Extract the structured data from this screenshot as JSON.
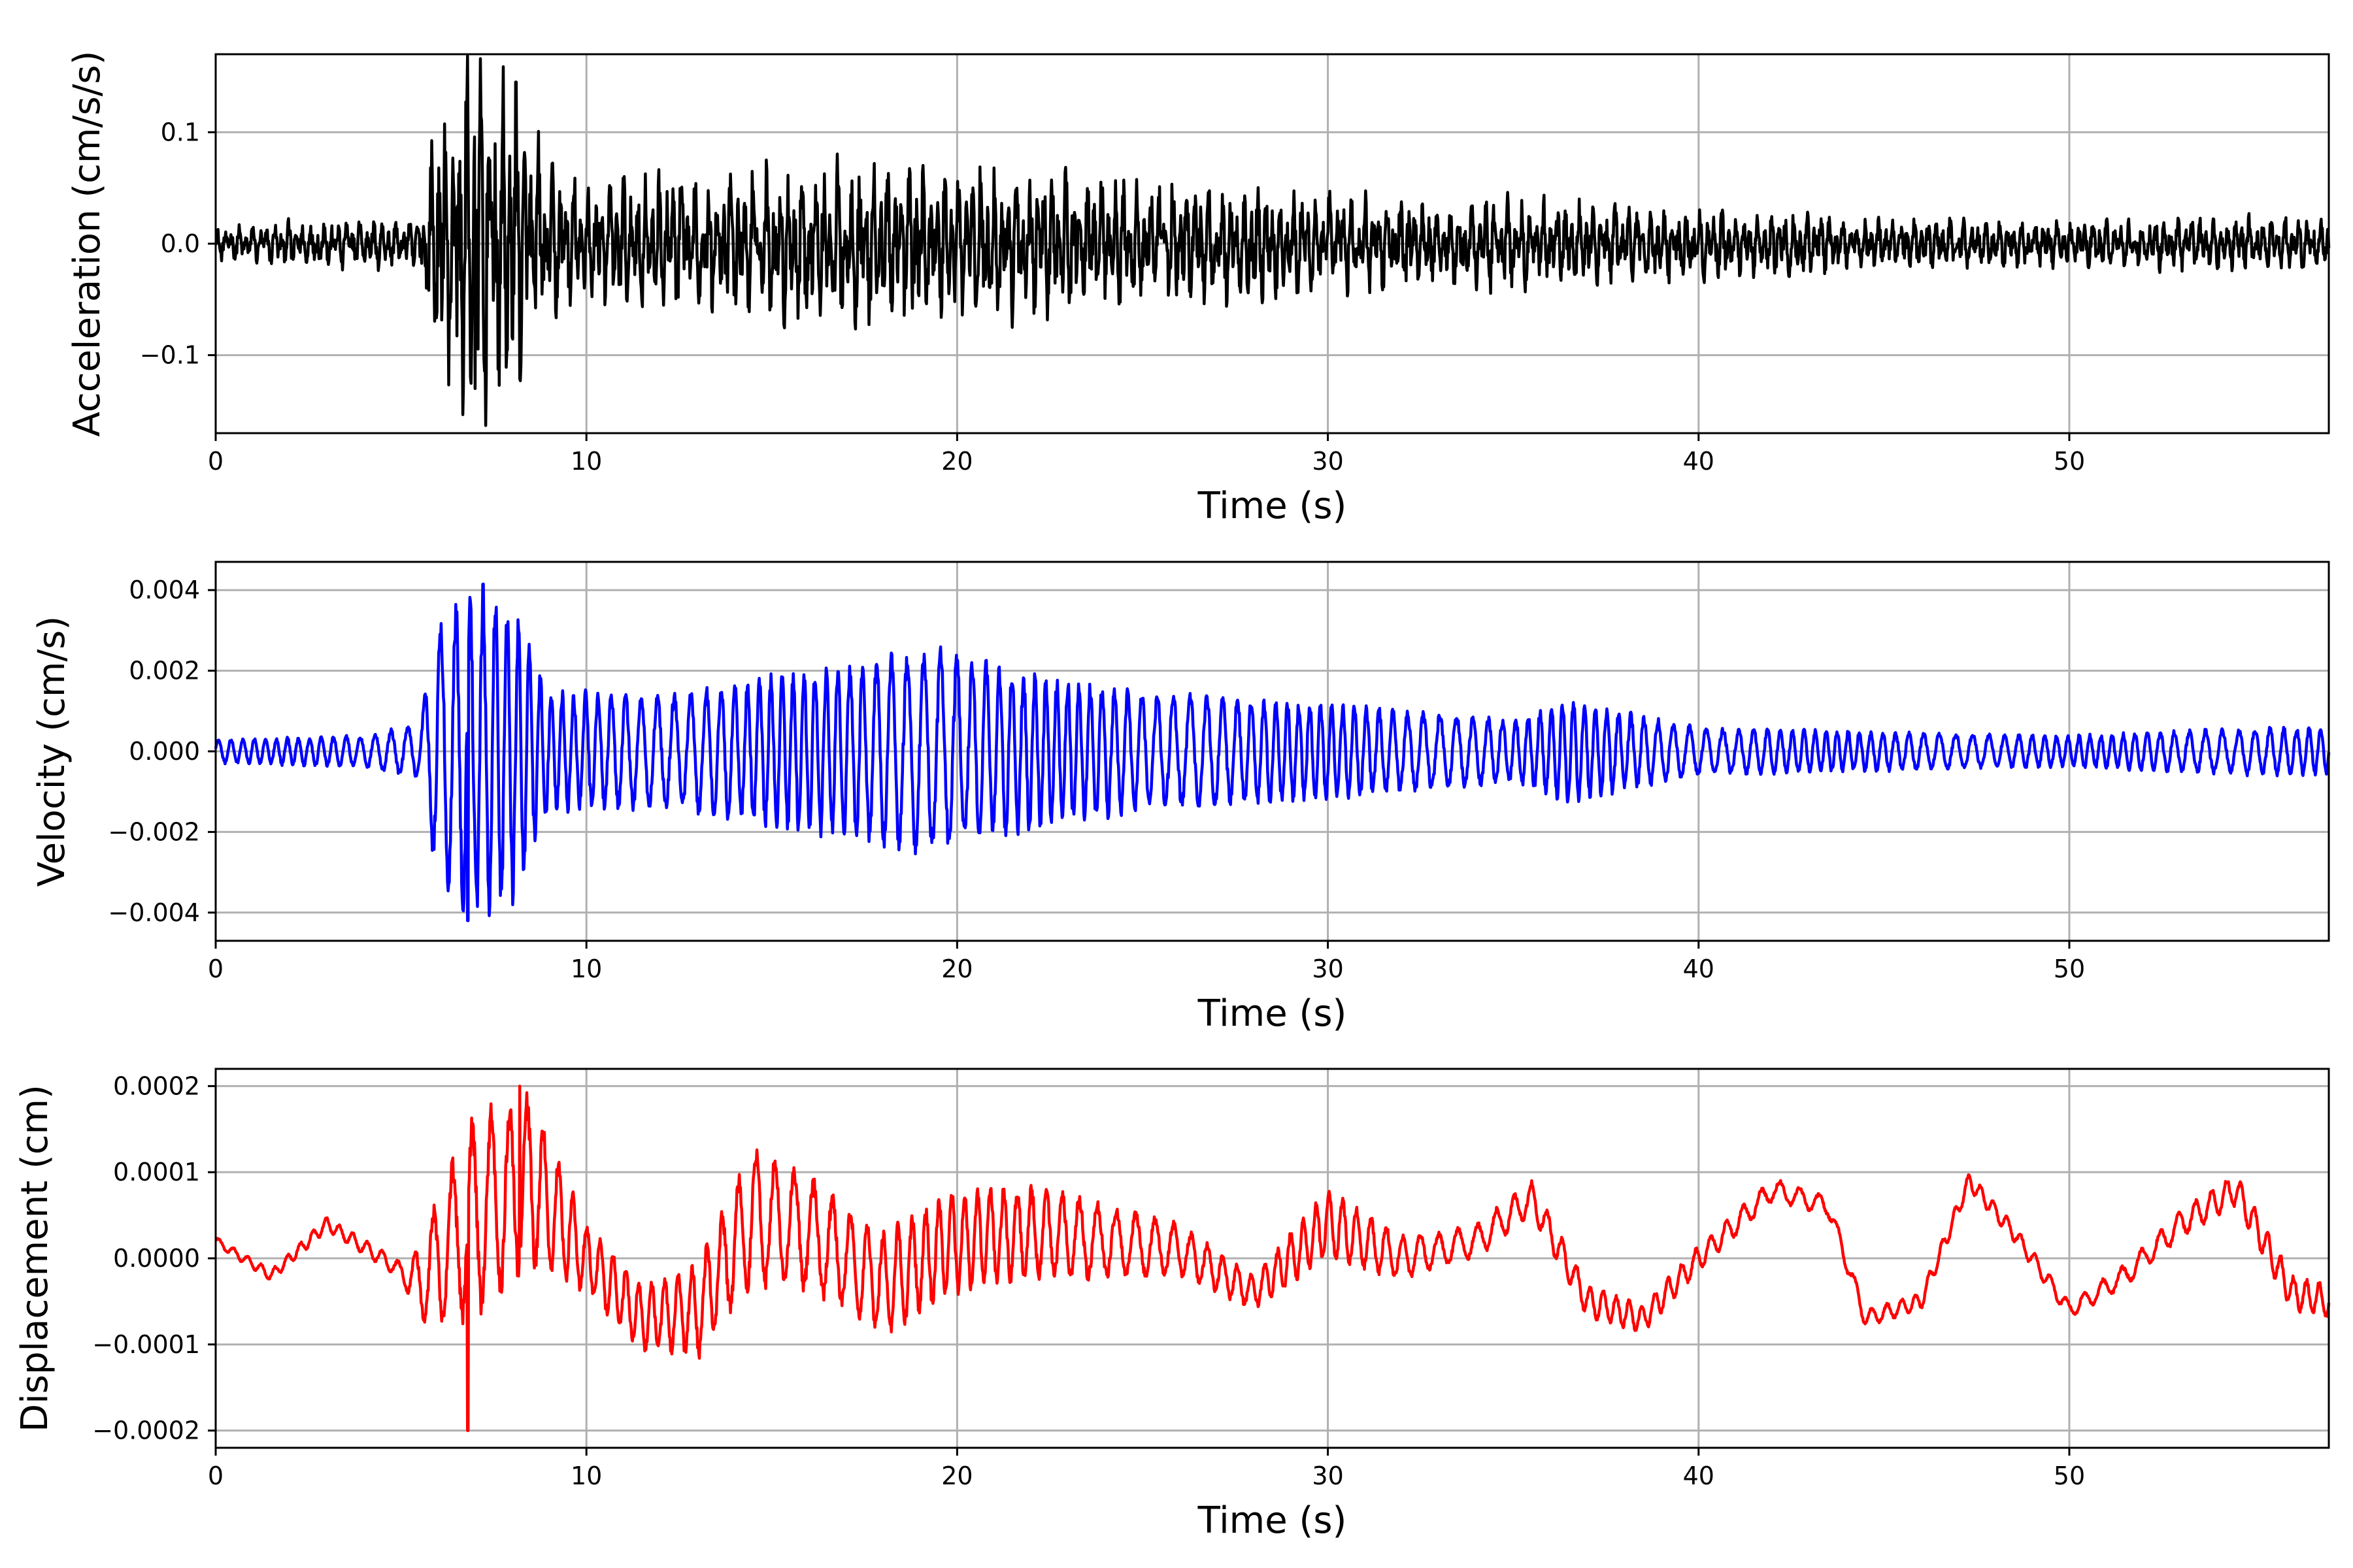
{
  "chart_data": [
    {
      "type": "line",
      "title": "",
      "xlabel": "Time (s)",
      "ylabel": "Acceleration (cm/s/s)",
      "xlim": [
        0,
        57
      ],
      "ylim": [
        -0.17,
        0.17
      ],
      "xticks": [
        0,
        10,
        20,
        30,
        40,
        50
      ],
      "xtick_labels": [
        "0",
        "10",
        "20",
        "30",
        "40",
        "50"
      ],
      "yticks": [
        -0.1,
        0.0,
        0.1
      ],
      "ytick_labels": [
        "−0.1",
        "0.0",
        "0.1"
      ],
      "grid": true,
      "line_color": "#000000",
      "envelope": {
        "time": [
          0,
          3,
          5.5,
          6,
          7,
          8,
          9,
          10,
          12,
          15,
          18,
          20,
          23,
          25,
          30,
          35,
          40,
          45,
          50,
          55,
          57
        ],
        "amplitude": [
          0.012,
          0.02,
          0.02,
          0.1,
          0.15,
          0.12,
          0.06,
          0.05,
          0.055,
          0.06,
          0.065,
          0.06,
          0.055,
          0.05,
          0.04,
          0.035,
          0.028,
          0.02,
          0.018,
          0.022,
          0.02
        ]
      },
      "peaks": [
        {
          "t": 7.0,
          "value": 0.155
        },
        {
          "t": 8.1,
          "value": 0.145
        },
        {
          "t": 7.0,
          "value": -0.13
        }
      ]
    },
    {
      "type": "line",
      "title": "",
      "xlabel": "Time (s)",
      "ylabel": "Velocity (cm/s)",
      "xlim": [
        0,
        57
      ],
      "ylim": [
        -0.0047,
        0.0047
      ],
      "xticks": [
        0,
        10,
        20,
        30,
        40,
        50
      ],
      "xtick_labels": [
        "0",
        "10",
        "20",
        "30",
        "40",
        "50"
      ],
      "yticks": [
        -0.004,
        -0.002,
        0.0,
        0.002,
        0.004
      ],
      "ytick_labels": [
        "−0.004",
        "−0.002",
        "0.000",
        "0.002",
        "0.004"
      ],
      "grid": true,
      "line_color": "#0000ff",
      "envelope": {
        "time": [
          0,
          4,
          5.5,
          6,
          7,
          8,
          9,
          10,
          12,
          15,
          18,
          19.5,
          20.5,
          23,
          25,
          30,
          35,
          36.5,
          40,
          45,
          50,
          55,
          57
        ],
        "amplitude": [
          0.0003,
          0.0004,
          0.0007,
          0.0033,
          0.0042,
          0.0038,
          0.0015,
          0.0015,
          0.0014,
          0.0019,
          0.0024,
          0.0026,
          0.0023,
          0.0018,
          0.0015,
          0.0012,
          0.0008,
          0.0013,
          0.0006,
          0.0005,
          0.0004,
          0.0006,
          0.0006
        ]
      },
      "peaks": [
        {
          "t": 6.8,
          "value": 0.0043
        },
        {
          "t": 6.8,
          "value": -0.0042
        }
      ]
    },
    {
      "type": "line",
      "title": "",
      "xlabel": "Time (s)",
      "ylabel": "Displacement (cm)",
      "xlim": [
        0,
        57
      ],
      "ylim": [
        -0.00022,
        0.00022
      ],
      "xticks": [
        0,
        10,
        20,
        30,
        40,
        50
      ],
      "xtick_labels": [
        "0",
        "10",
        "20",
        "30",
        "40",
        "50"
      ],
      "yticks": [
        -0.0002,
        -0.0001,
        0.0,
        0.0001,
        0.0002
      ],
      "ytick_labels": [
        "−0.0002",
        "−0.0001",
        "0.0000",
        "0.0001",
        "0.0002"
      ],
      "grid": true,
      "line_color": "#ff0000",
      "trend": {
        "time": [
          0,
          1.5,
          3,
          4.5,
          5.5,
          7,
          8.5,
          10,
          11.5,
          13,
          14.5,
          16,
          18,
          20,
          22,
          24,
          26,
          28,
          30,
          32,
          34,
          35.5,
          37,
          38.5,
          40,
          42,
          43.5,
          44.5,
          46,
          47.3,
          48.5,
          50,
          51.5,
          53,
          54.5,
          56,
          57
        ],
        "value": [
          2e-05,
          -2e-05,
          4e-05,
          0.0,
          -3e-05,
          5e-05,
          9e-05,
          0.0,
          -7e-05,
          -6e-05,
          5e-05,
          3e-05,
          -3e-05,
          2e-05,
          3e-05,
          2e-05,
          1e-05,
          -4e-05,
          4e-05,
          0.0,
          2e-05,
          7e-05,
          -5e-05,
          -7e-05,
          0.0,
          8e-05,
          6e-05,
          -7e-05,
          -5e-05,
          9e-05,
          3e-05,
          -6e-05,
          -2e-05,
          4e-05,
          8e-05,
          -4e-05,
          -5e-05
        ]
      },
      "oscillation": {
        "time": [
          0,
          5,
          6,
          7,
          8.5,
          10,
          12,
          14.5,
          17,
          20,
          23,
          26,
          28,
          30,
          33,
          36,
          40,
          45,
          50,
          55,
          57
        ],
        "amplitude": [
          5e-06,
          1e-05,
          8e-05,
          0.00012,
          0.0001,
          4e-05,
          4e-05,
          8e-05,
          6e-05,
          6e-05,
          5e-05,
          3e-05,
          2e-05,
          4e-05,
          2e-05,
          2e-05,
          1.5e-05,
          1e-05,
          1e-05,
          2e-05,
          2e-05
        ]
      },
      "peaks": [
        {
          "t": 8.2,
          "value": 0.0002
        },
        {
          "t": 6.8,
          "value": -0.0002
        }
      ]
    }
  ]
}
